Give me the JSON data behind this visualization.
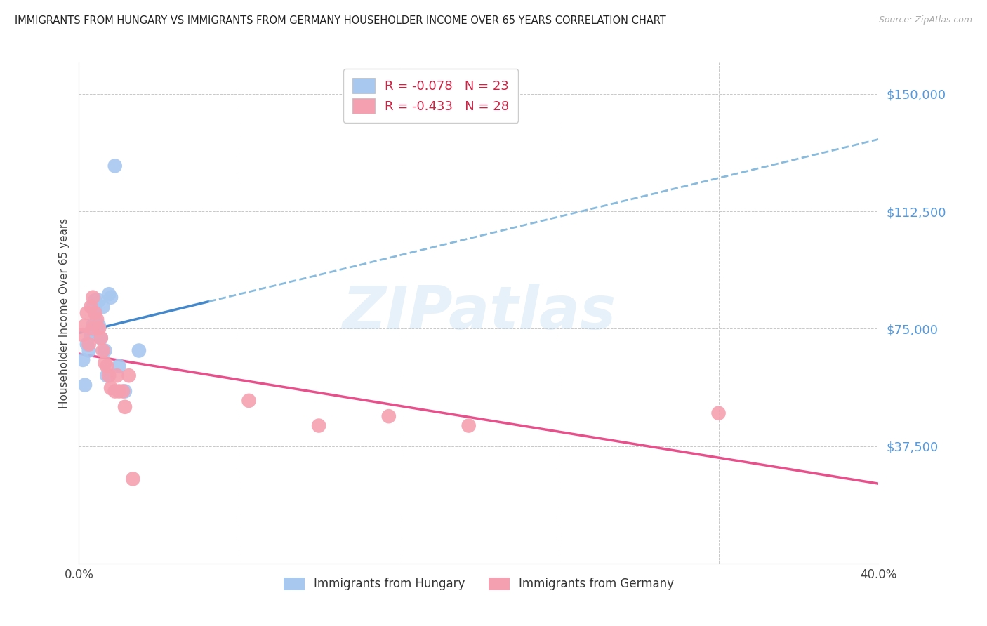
{
  "title": "IMMIGRANTS FROM HUNGARY VS IMMIGRANTS FROM GERMANY HOUSEHOLDER INCOME OVER 65 YEARS CORRELATION CHART",
  "source": "Source: ZipAtlas.com",
  "ylabel": "Householder Income Over 65 years",
  "xlim": [
    0.0,
    0.4
  ],
  "ylim": [
    0,
    160000
  ],
  "yticks": [
    0,
    37500,
    75000,
    112500,
    150000
  ],
  "ytick_labels": [
    "",
    "$37,500",
    "$75,000",
    "$112,500",
    "$150,000"
  ],
  "xticks": [
    0.0,
    0.08,
    0.16,
    0.24,
    0.32,
    0.4
  ],
  "xtick_labels": [
    "0.0%",
    "",
    "",
    "",
    "",
    "40.0%"
  ],
  "hungary_dot_color": "#a8c8f0",
  "germany_dot_color": "#f5a0b0",
  "hungary_line_solid_color": "#4488cc",
  "hungary_line_dash_color": "#88bbdd",
  "germany_line_color": "#e8508c",
  "tick_color": "#5599dd",
  "stat_color": "#cc2244",
  "hungary_R": -0.078,
  "hungary_N": 23,
  "germany_R": -0.433,
  "germany_N": 28,
  "watermark_text": "ZIPatlas",
  "legend1_label": "Immigrants from Hungary",
  "legend2_label": "Immigrants from Germany",
  "background_color": "#ffffff",
  "grid_color": "#c8c8c8",
  "hungary_x": [
    0.002,
    0.003,
    0.004,
    0.005,
    0.006,
    0.006,
    0.007,
    0.007,
    0.008,
    0.008,
    0.009,
    0.01,
    0.01,
    0.011,
    0.012,
    0.013,
    0.014,
    0.015,
    0.016,
    0.018,
    0.02,
    0.023,
    0.03
  ],
  "hungary_y": [
    65000,
    57000,
    70000,
    68000,
    73000,
    74000,
    76000,
    82000,
    81000,
    84000,
    77000,
    76000,
    84000,
    72000,
    82000,
    68000,
    60000,
    86000,
    85000,
    127000,
    63000,
    55000,
    68000
  ],
  "germany_x": [
    0.002,
    0.003,
    0.004,
    0.005,
    0.006,
    0.007,
    0.007,
    0.008,
    0.009,
    0.01,
    0.011,
    0.012,
    0.013,
    0.014,
    0.015,
    0.016,
    0.018,
    0.019,
    0.02,
    0.022,
    0.023,
    0.025,
    0.027,
    0.085,
    0.12,
    0.155,
    0.195,
    0.32
  ],
  "germany_y": [
    73000,
    76000,
    80000,
    70000,
    82000,
    75000,
    85000,
    80000,
    78000,
    75000,
    72000,
    68000,
    64000,
    63000,
    60000,
    56000,
    55000,
    60000,
    55000,
    55000,
    50000,
    60000,
    27000,
    52000,
    44000,
    47000,
    44000,
    48000
  ],
  "hungary_line_x_solid_end": 0.065
}
